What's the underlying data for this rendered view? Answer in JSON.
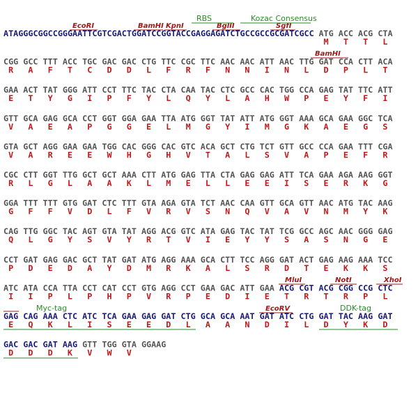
{
  "vector_color": "#1a1a7a",
  "insert_color": "#555555",
  "aa_color": "#c0181b",
  "site_color": "#a01818",
  "feature_color": "#2a8a2a",
  "annotations": [
    "EcoRI",
    "BamHI",
    "KpnI",
    "BglII",
    "SgfI",
    "RBS",
    "Kozac Consensus",
    "BamHI",
    "MluI",
    "NotI",
    "XhoI",
    "Myc-tag",
    "EcoRV",
    "DDK-tag"
  ],
  "lines": [
    {
      "prefix": "ATAGGGCGGCCGGGAATTCGTCGACTGGATCCGGTACCGAGGAGATCTGCCGCCGCGATCGCC",
      "codons": [
        "ATG",
        "ACC",
        "ACG",
        "CTA"
      ],
      "aa": [
        "M",
        "T",
        "T",
        "L"
      ]
    },
    {
      "codons": [
        "CGG",
        "GCC",
        "TTT",
        "ACC",
        "TGC",
        "GAC",
        "GAC",
        "CTG",
        "TTC",
        "CGC",
        "TTC",
        "AAC",
        "AAC",
        "ATT",
        "AAC",
        "TTG",
        "GAT",
        "CCA",
        "CTT",
        "ACA"
      ],
      "aa": [
        "R",
        "A",
        "F",
        "T",
        "C",
        "D",
        "D",
        "L",
        "F",
        "R",
        "F",
        "N",
        "N",
        "I",
        "N",
        "L",
        "D",
        "P",
        "L",
        "T"
      ]
    },
    {
      "codons": [
        "GAA",
        "ACT",
        "TAT",
        "GGG",
        "ATT",
        "CCT",
        "TTC",
        "TAC",
        "CTA",
        "CAA",
        "TAC",
        "CTC",
        "GCC",
        "CAC",
        "TGG",
        "CCA",
        "GAG",
        "TAT",
        "TTC",
        "ATT"
      ],
      "aa": [
        "E",
        "T",
        "Y",
        "G",
        "I",
        "P",
        "F",
        "Y",
        "L",
        "Q",
        "Y",
        "L",
        "A",
        "H",
        "W",
        "P",
        "E",
        "Y",
        "F",
        "I"
      ]
    },
    {
      "codons": [
        "GTT",
        "GCA",
        "GAG",
        "GCA",
        "CCT",
        "GGT",
        "GGA",
        "GAA",
        "TTA",
        "ATG",
        "GGT",
        "TAT",
        "ATT",
        "ATG",
        "GGT",
        "AAA",
        "GCA",
        "GAA",
        "GGC",
        "TCA"
      ],
      "aa": [
        "V",
        "A",
        "E",
        "A",
        "P",
        "G",
        "G",
        "E",
        "L",
        "M",
        "G",
        "Y",
        "I",
        "M",
        "G",
        "K",
        "A",
        "E",
        "G",
        "S"
      ]
    },
    {
      "codons": [
        "GTA",
        "GCT",
        "AGG",
        "GAA",
        "GAA",
        "TGG",
        "CAC",
        "GGG",
        "CAC",
        "GTC",
        "ACA",
        "GCT",
        "CTG",
        "TCT",
        "GTT",
        "GCC",
        "CCA",
        "GAA",
        "TTT",
        "CGA"
      ],
      "aa": [
        "V",
        "A",
        "R",
        "E",
        "E",
        "W",
        "H",
        "G",
        "H",
        "V",
        "T",
        "A",
        "L",
        "S",
        "V",
        "A",
        "P",
        "E",
        "F",
        "R"
      ]
    },
    {
      "codons": [
        "CGC",
        "CTT",
        "GGT",
        "TTG",
        "GCT",
        "GCT",
        "AAA",
        "CTT",
        "ATG",
        "GAG",
        "TTA",
        "CTA",
        "GAG",
        "GAG",
        "ATT",
        "TCA",
        "GAA",
        "AGA",
        "AAG",
        "GGT"
      ],
      "aa": [
        "R",
        "L",
        "G",
        "L",
        "A",
        "A",
        "K",
        "L",
        "M",
        "E",
        "L",
        "L",
        "E",
        "E",
        "I",
        "S",
        "E",
        "R",
        "K",
        "G"
      ]
    },
    {
      "codons": [
        "GGA",
        "TTT",
        "TTT",
        "GTG",
        "GAT",
        "CTC",
        "TTT",
        "GTA",
        "AGA",
        "GTA",
        "TCT",
        "AAC",
        "CAA",
        "GTT",
        "GCA",
        "GTT",
        "AAC",
        "ATG",
        "TAC",
        "AAG"
      ],
      "aa": [
        "G",
        "F",
        "F",
        "V",
        "D",
        "L",
        "F",
        "V",
        "R",
        "V",
        "S",
        "N",
        "Q",
        "V",
        "A",
        "V",
        "N",
        "M",
        "Y",
        "K"
      ]
    },
    {
      "codons": [
        "CAG",
        "TTG",
        "GGC",
        "TAC",
        "AGT",
        "GTA",
        "TAT",
        "AGG",
        "ACG",
        "GTC",
        "ATA",
        "GAG",
        "TAC",
        "TAT",
        "TCG",
        "GCC",
        "AGC",
        "AAC",
        "GGG",
        "GAG"
      ],
      "aa": [
        "Q",
        "L",
        "G",
        "Y",
        "S",
        "V",
        "Y",
        "R",
        "T",
        "V",
        "I",
        "E",
        "Y",
        "Y",
        "S",
        "A",
        "S",
        "N",
        "G",
        "E"
      ]
    },
    {
      "codons": [
        "CCT",
        "GAT",
        "GAG",
        "GAC",
        "GCT",
        "TAT",
        "GAT",
        "ATG",
        "AGG",
        "AAA",
        "GCA",
        "CTT",
        "TCC",
        "AGG",
        "GAT",
        "ACT",
        "GAG",
        "AAG",
        "AAA",
        "TCC"
      ],
      "aa": [
        "P",
        "D",
        "E",
        "D",
        "A",
        "Y",
        "D",
        "M",
        "R",
        "K",
        "A",
        "L",
        "S",
        "R",
        "D",
        "T",
        "E",
        "K",
        "K",
        "S"
      ]
    },
    {
      "codons": [
        "ATC",
        "ATA",
        "CCA",
        "TTA",
        "CCT",
        "CAT",
        "CCT",
        "GTG",
        "AGG",
        "CCT",
        "GAA",
        "GAC",
        "ATT",
        "GAA",
        "ACG",
        "CGT",
        "ACG",
        "CGG",
        "CCG",
        "CTC"
      ],
      "aa": [
        "I",
        "I",
        "P",
        "L",
        "P",
        "H",
        "P",
        "V",
        "R",
        "P",
        "E",
        "D",
        "I",
        "E",
        "T",
        "R",
        "T",
        "R",
        "P",
        "L"
      ],
      "vector_codons": [
        14,
        20
      ]
    },
    {
      "codons": [
        "GAG",
        "CAG",
        "AAA",
        "CTC",
        "ATC",
        "TCA",
        "GAA",
        "GAG",
        "GAT",
        "CTG",
        "GCA",
        "GCA",
        "AAT",
        "GAT",
        "ATC",
        "CTG",
        "GAT",
        "TAC",
        "AAG",
        "GAT"
      ],
      "aa": [
        "E",
        "Q",
        "K",
        "L",
        "I",
        "S",
        "E",
        "E",
        "D",
        "L",
        "A",
        "A",
        "N",
        "D",
        "I",
        "L",
        "D",
        "Y",
        "K",
        "D"
      ],
      "vector_codons": [
        0,
        20
      ]
    },
    {
      "codons": [
        "GAC",
        "GAC",
        "GAT",
        "AAG",
        "GTT",
        "TGG",
        "GTA"
      ],
      "aa": [
        "D",
        "D",
        "D",
        "K",
        "V",
        "W",
        "V"
      ],
      "suffix": "GGAAG",
      "vector_codons": [
        0,
        4
      ]
    }
  ]
}
